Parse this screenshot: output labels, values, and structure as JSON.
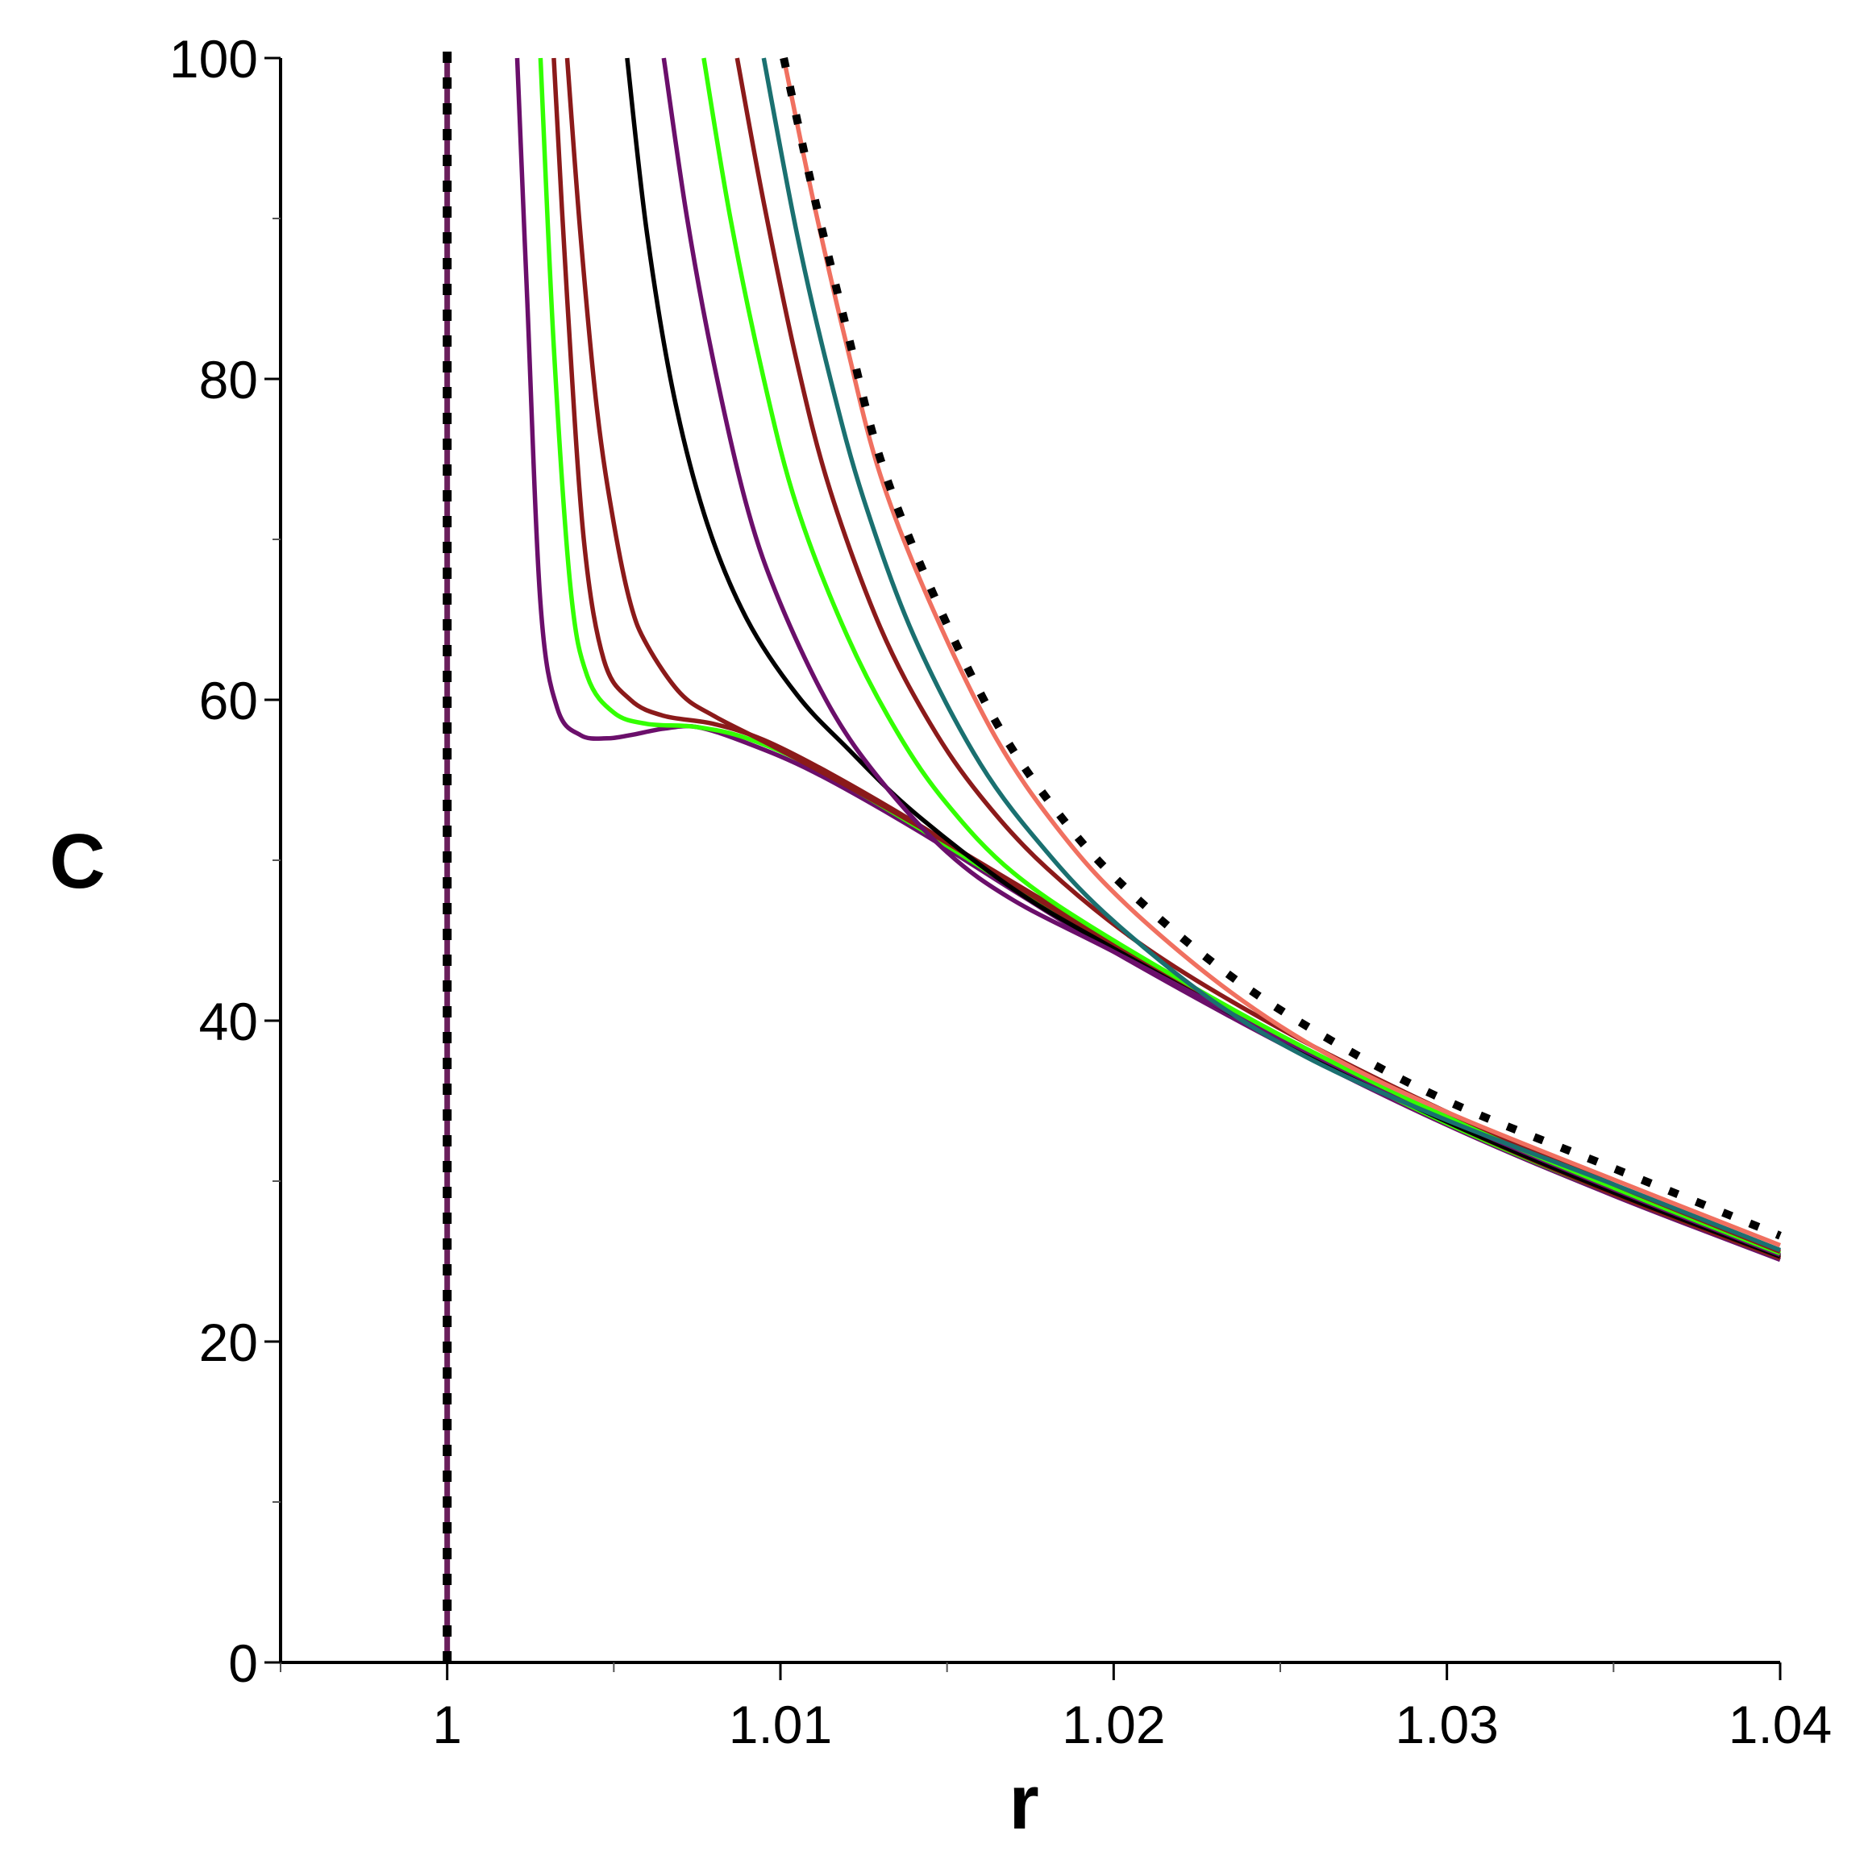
{
  "chart_data": {
    "type": "line",
    "title": "",
    "xlabel": "r",
    "ylabel": "C",
    "xlim": [
      0.995,
      1.04
    ],
    "ylim": [
      0,
      100
    ],
    "grid": false,
    "legend": "none",
    "x_ticks": [
      {
        "value": 1.0,
        "label": "1"
      },
      {
        "value": 1.01,
        "label": "1.01"
      },
      {
        "value": 1.02,
        "label": "1.02"
      },
      {
        "value": 1.03,
        "label": "1.03"
      },
      {
        "value": 1.04,
        "label": "1.04"
      }
    ],
    "y_ticks": [
      {
        "value": 0,
        "label": "0"
      },
      {
        "value": 20,
        "label": "20"
      },
      {
        "value": 40,
        "label": "40"
      },
      {
        "value": 60,
        "label": "60"
      },
      {
        "value": 80,
        "label": "80"
      },
      {
        "value": 100,
        "label": "100"
      }
    ],
    "vertical_lines": [
      {
        "name": "asymptote-solid",
        "x": 1.0,
        "color": "#6a1f5c",
        "style": "solid"
      },
      {
        "name": "asymptote-dotted",
        "x": 1.0,
        "color": "#000000",
        "style": "dotted"
      }
    ],
    "series": [
      {
        "name": "curve-1",
        "color": "#6b0f6b",
        "style": "solid",
        "x": [
          1.0021,
          1.0024,
          1.0028,
          1.0033,
          1.004,
          1.0048,
          1.0055,
          1.0065,
          1.0075,
          1.009,
          1.011,
          1.014,
          1.017,
          1.02,
          1.025,
          1.03,
          1.035,
          1.04
        ],
        "y": [
          100,
          85,
          66,
          59.5,
          57.8,
          57.6,
          57.8,
          58.2,
          58.3,
          57.3,
          55.5,
          52.0,
          48.1,
          44.3,
          38.6,
          33.5,
          29.1,
          25.1
        ]
      },
      {
        "name": "curve-2",
        "color": "#33ff00",
        "style": "solid",
        "x": [
          1.0028,
          1.0032,
          1.0037,
          1.0042,
          1.005,
          1.006,
          1.0075,
          1.009,
          1.011,
          1.014,
          1.017,
          1.02,
          1.025,
          1.03,
          1.035,
          1.04
        ],
        "y": [
          100,
          82,
          67,
          61.5,
          59.2,
          58.5,
          58.3,
          57.6,
          55.8,
          52.2,
          48.3,
          44.6,
          38.8,
          33.6,
          29.2,
          25.2
        ]
      },
      {
        "name": "curve-3",
        "color": "#8b1a1a",
        "style": "solid",
        "x": [
          1.0032,
          1.0036,
          1.0041,
          1.0047,
          1.0055,
          1.0065,
          1.008,
          1.0095,
          1.0115,
          1.014,
          1.017,
          1.02,
          1.025,
          1.03,
          1.035,
          1.04
        ],
        "y": [
          100,
          85,
          70,
          62.5,
          60.0,
          59.0,
          58.5,
          57.5,
          55.4,
          52.4,
          48.5,
          44.7,
          38.9,
          33.7,
          29.2,
          25.2
        ]
      },
      {
        "name": "curve-4",
        "color": "#8b1a1a",
        "style": "solid",
        "x": [
          1.0036,
          1.004,
          1.0045,
          1.005,
          1.0055,
          1.006,
          1.007,
          1.008,
          1.0095,
          1.0115,
          1.014,
          1.017,
          1.02,
          1.025,
          1.03,
          1.035,
          1.04
        ],
        "y": [
          100,
          89,
          78,
          71,
          66,
          63.4,
          60.4,
          59.0,
          57.4,
          55.2,
          52.3,
          48.6,
          44.9,
          39.0,
          33.8,
          29.3,
          25.2
        ]
      },
      {
        "name": "curve-5",
        "color": "#000000",
        "style": "solid",
        "x": [
          1.0054,
          1.006,
          1.0068,
          1.0078,
          1.009,
          1.0105,
          1.012,
          1.014,
          1.017,
          1.02,
          1.025,
          1.03,
          1.035,
          1.04
        ],
        "y": [
          100,
          89,
          79,
          71,
          65,
          60.3,
          57.0,
          53.0,
          48.2,
          44.5,
          38.8,
          33.7,
          29.3,
          25.3
        ]
      },
      {
        "name": "curve-6",
        "color": "#6b0f6b",
        "style": "solid",
        "x": [
          1.0065,
          1.0072,
          1.008,
          1.009,
          1.01,
          1.0115,
          1.013,
          1.015,
          1.017,
          1.02,
          1.025,
          1.03,
          1.035,
          1.04
        ],
        "y": [
          100,
          90,
          81,
          72,
          66,
          59.5,
          55.0,
          50.5,
          47.5,
          44.3,
          38.9,
          33.9,
          29.5,
          25.4
        ]
      },
      {
        "name": "curve-7",
        "color": "#33ff00",
        "style": "solid",
        "x": [
          1.0077,
          1.0085,
          1.0095,
          1.0105,
          1.012,
          1.0135,
          1.015,
          1.017,
          1.02,
          1.025,
          1.03,
          1.035,
          1.04
        ],
        "y": [
          100,
          90,
          80,
          72,
          64,
          58,
          53.5,
          49.2,
          45.0,
          39.1,
          34.0,
          29.6,
          25.5
        ]
      },
      {
        "name": "curve-8",
        "color": "#8b1a1a",
        "style": "solid",
        "x": [
          1.0087,
          1.0095,
          1.0105,
          1.0115,
          1.013,
          1.0145,
          1.016,
          1.018,
          1.021,
          1.025,
          1.03,
          1.035,
          1.04
        ],
        "y": [
          100,
          91,
          81,
          73,
          64.5,
          58.5,
          54.0,
          49.5,
          44.5,
          39.5,
          34.3,
          29.8,
          25.6
        ]
      },
      {
        "name": "curve-9",
        "color": "#1a7070",
        "style": "solid",
        "x": [
          1.0095,
          1.0105,
          1.0115,
          1.0125,
          1.014,
          1.016,
          1.018,
          1.02,
          1.023,
          1.026,
          1.03,
          1.035,
          1.04
        ],
        "y": [
          100,
          89,
          80,
          72.5,
          64,
          56,
          50.5,
          46.2,
          41.2,
          37.5,
          33.8,
          29.8,
          25.7
        ]
      },
      {
        "name": "curve-10",
        "color": "#f07060",
        "style": "solid",
        "x": [
          1.0101,
          1.011,
          1.012,
          1.013,
          1.0145,
          1.0165,
          1.0185,
          1.0205,
          1.0235,
          1.0265,
          1.03,
          1.035,
          1.04
        ],
        "y": [
          100,
          91,
          82,
          74,
          66,
          57.5,
          51.5,
          47,
          41.8,
          37.8,
          34.3,
          30.1,
          26.0
        ]
      },
      {
        "name": "limit-dotted",
        "color": "#000000",
        "style": "dotted",
        "x": [
          1.0101,
          1.011,
          1.012,
          1.013,
          1.0145,
          1.0165,
          1.0185,
          1.0205,
          1.0235,
          1.0265,
          1.03,
          1.035,
          1.04
        ],
        "y": [
          100,
          91.5,
          83,
          75,
          67,
          58.5,
          52.5,
          48,
          42.8,
          38.8,
          35.0,
          30.8,
          26.6
        ]
      }
    ]
  }
}
